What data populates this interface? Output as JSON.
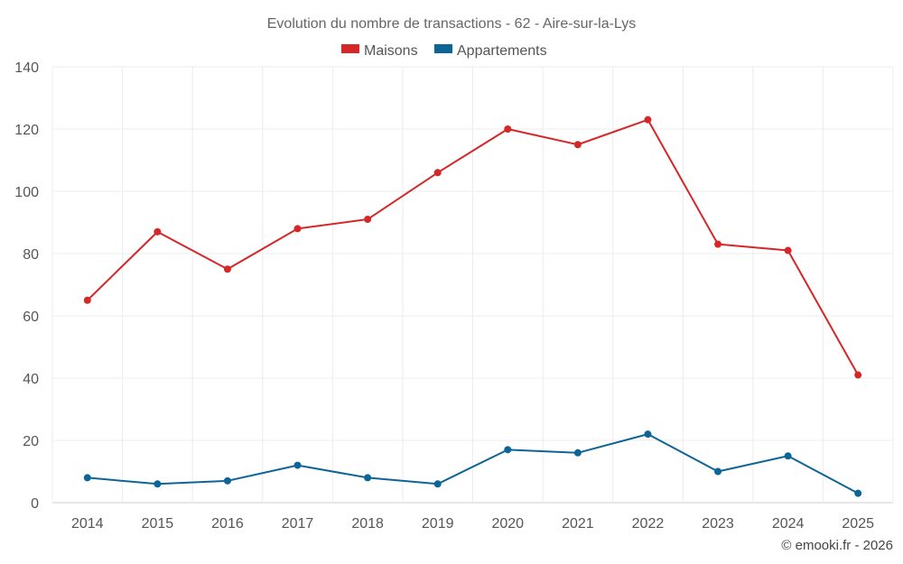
{
  "chart_data": {
    "type": "line",
    "title": "Evolution du nombre de transactions - 62 - Aire-sur-la-Lys",
    "categories": [
      "2014",
      "2015",
      "2016",
      "2017",
      "2018",
      "2019",
      "2020",
      "2021",
      "2022",
      "2023",
      "2024",
      "2025"
    ],
    "series": [
      {
        "name": "Maisons",
        "color": "#d62728",
        "values": [
          65,
          87,
          75,
          88,
          91,
          106,
          120,
          115,
          123,
          83,
          81,
          41
        ]
      },
      {
        "name": "Appartements",
        "color": "#0d6496",
        "values": [
          8,
          6,
          7,
          12,
          8,
          6,
          17,
          16,
          22,
          10,
          15,
          3
        ]
      }
    ],
    "ylim": [
      0,
      140
    ],
    "yticks": [
      "0",
      "20",
      "40",
      "60",
      "80",
      "100",
      "120",
      "140"
    ],
    "ytick_values": [
      0,
      20,
      40,
      60,
      80,
      100,
      120,
      140
    ],
    "xlabel": "",
    "ylabel": "",
    "grid": true,
    "legend_position": "top-center"
  },
  "credit": "© emooki.fr - 2026"
}
